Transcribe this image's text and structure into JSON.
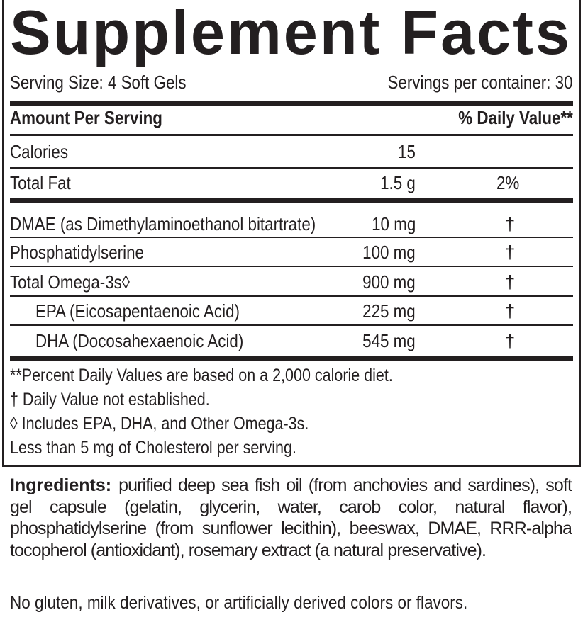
{
  "title": "Supplement Facts",
  "serving_size": "Serving Size: 4 Soft Gels",
  "servings_per_container": "Servings per container: 30",
  "header": {
    "amount": "Amount Per Serving",
    "daily_value": "% Daily Value**"
  },
  "rows": [
    {
      "name": "Calories",
      "amount": "15",
      "dv": ""
    },
    {
      "name": "Total Fat",
      "amount": "1.5 g",
      "dv": "2%"
    },
    {
      "name": "DMAE (as Dimethylaminoethanol bitartrate)",
      "amount": "10 mg",
      "dv": "†"
    },
    {
      "name": "Phosphatidylserine",
      "amount": "100 mg",
      "dv": "†"
    },
    {
      "name": "Total Omega-3s◊",
      "amount": "900 mg",
      "dv": "†"
    },
    {
      "name": "EPA (Eicosapentaenoic Acid)",
      "amount": "225 mg",
      "dv": "†"
    },
    {
      "name": "DHA (Docosahexaenoic Acid)",
      "amount": "545 mg",
      "dv": "†"
    }
  ],
  "footnotes": [
    "**Percent Daily Values are based on a 2,000 calorie diet.",
    "†  Daily Value not established.",
    "◊  Includes EPA, DHA, and Other Omega-3s.",
    "Less than 5 mg of Cholesterol per serving."
  ],
  "ingredients": {
    "label": "Ingredients:",
    "text": "purified deep sea fish oil (from anchovies and sardines), soft gel capsule (gelatin, glycerin, water, carob color, natural flavor), phosphatidylserine (from sunflower lecithin), beeswax, DMAE, RRR-alpha tocopherol (antioxidant), rosemary extract (a natural preservative)."
  },
  "free_from": "No gluten, milk derivatives, or artificially derived colors or flavors."
}
